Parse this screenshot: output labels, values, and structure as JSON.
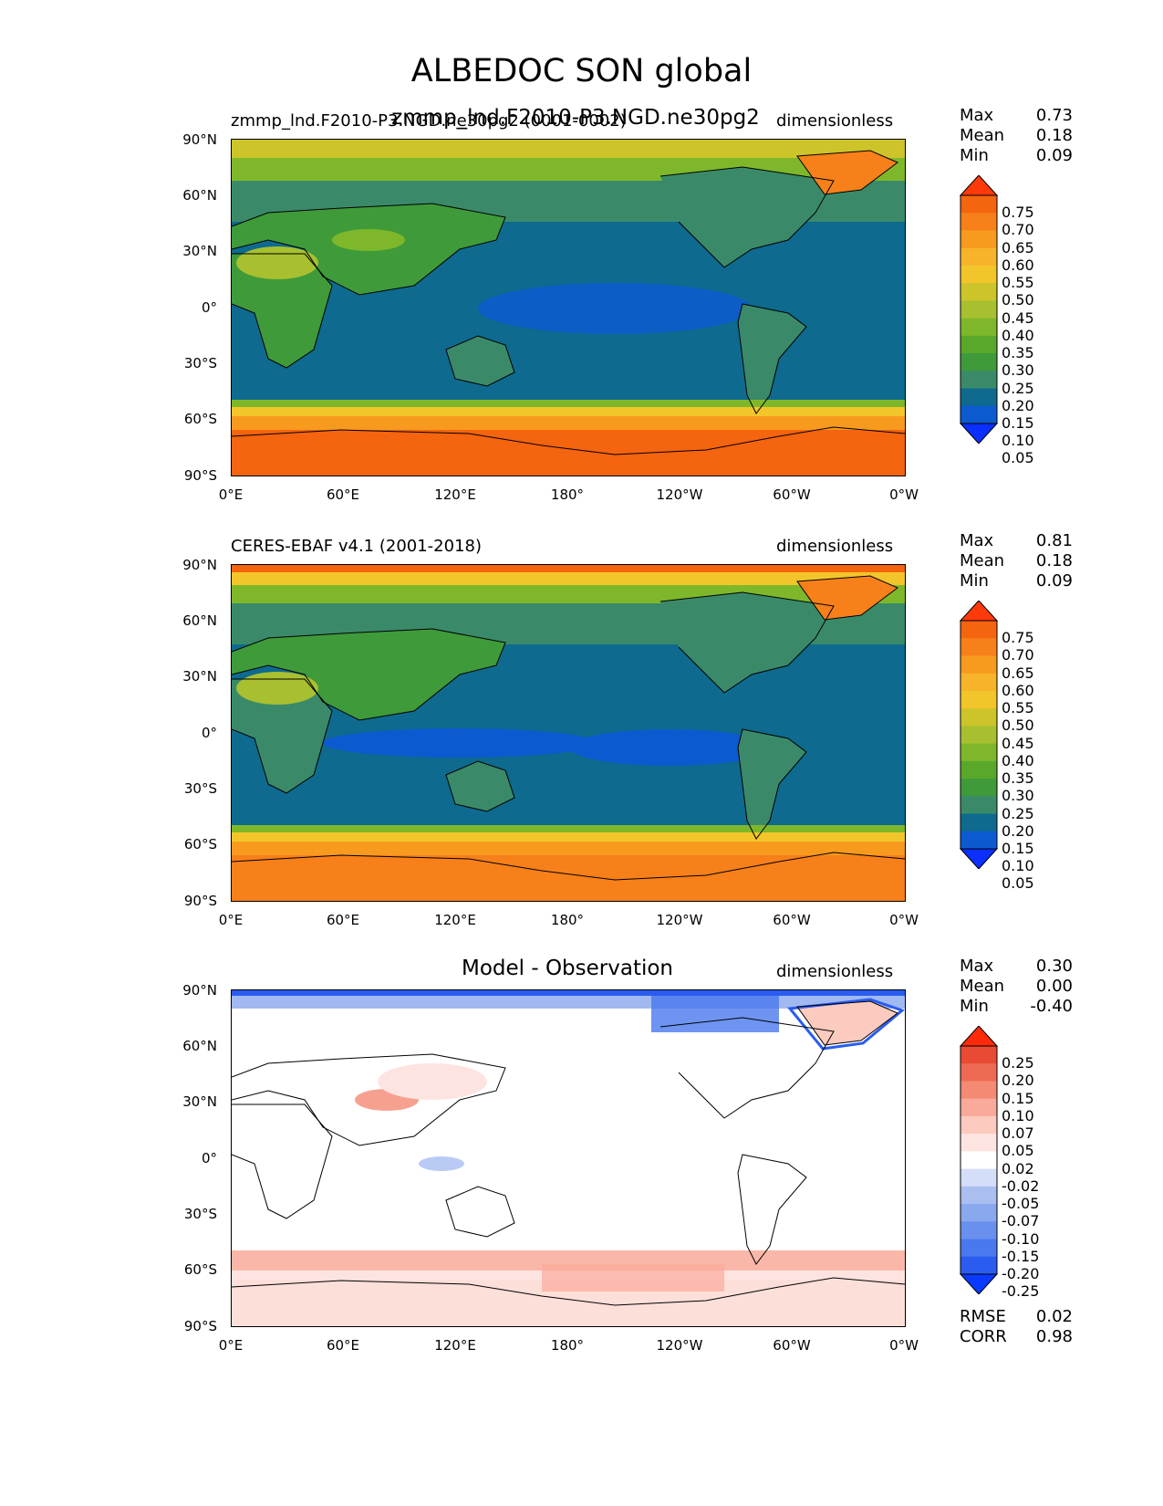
{
  "suptitle": "ALBEDOC SON global",
  "panels": [
    {
      "left_title": "zmmp_lnd.F2010-P3.NGD.ne30pg2 (0001-0002)",
      "center_title": "zmmp_lnd.F2010-P3.NGD.ne30pg2",
      "right_title": "dimensionless",
      "stats": [
        {
          "key": "Max",
          "value": "0.73"
        },
        {
          "key": "Mean",
          "value": "0.18"
        },
        {
          "key": "Min",
          "value": "0.09"
        }
      ],
      "colorbar_ticks": [
        "0.75",
        "0.70",
        "0.65",
        "0.60",
        "0.55",
        "0.50",
        "0.45",
        "0.40",
        "0.35",
        "0.30",
        "0.25",
        "0.20",
        "0.15",
        "0.10",
        "0.05"
      ]
    },
    {
      "left_title": "CERES-EBAF v4.1 (2001-2018)",
      "center_title": "",
      "right_title": "dimensionless",
      "stats": [
        {
          "key": "Max",
          "value": "0.81"
        },
        {
          "key": "Mean",
          "value": "0.18"
        },
        {
          "key": "Min",
          "value": "0.09"
        }
      ],
      "colorbar_ticks": [
        "0.75",
        "0.70",
        "0.65",
        "0.60",
        "0.55",
        "0.50",
        "0.45",
        "0.40",
        "0.35",
        "0.30",
        "0.25",
        "0.20",
        "0.15",
        "0.10",
        "0.05"
      ]
    },
    {
      "left_title": "",
      "center_title": "Model - Observation",
      "right_title": "dimensionless",
      "stats": [
        {
          "key": "Max",
          "value": "0.30"
        },
        {
          "key": "Mean",
          "value": "0.00"
        },
        {
          "key": "Min",
          "value": "-0.40"
        }
      ],
      "colorbar_ticks": [
        "0.25",
        "0.20",
        "0.15",
        "0.10",
        "0.07",
        "0.05",
        "0.02",
        "-0.02",
        "-0.05",
        "-0.07",
        "-0.10",
        "-0.15",
        "-0.20",
        "-0.25"
      ],
      "extra_stats": [
        {
          "key": "RMSE",
          "value": "0.02"
        },
        {
          "key": "CORR",
          "value": "0.98"
        }
      ]
    }
  ],
  "axes": {
    "lat_labels": [
      "90°N",
      "60°N",
      "30°N",
      "0°",
      "30°S",
      "60°S",
      "90°S"
    ],
    "lon_labels": [
      "0°E",
      "60°E",
      "120°E",
      "180°",
      "120°W",
      "60°W",
      "0°W"
    ]
  },
  "colors": {
    "abs_scale": [
      "#0a2fff",
      "#0c5ad0",
      "#0e6a8e",
      "#3a8a6a",
      "#3f9a3a",
      "#5aa82a",
      "#7eb82a",
      "#a8c030",
      "#cdc42a",
      "#f2c62a",
      "#f7b32a",
      "#f79a1e",
      "#f7801a",
      "#f5640f",
      "#ff3a0a"
    ],
    "diff_scale": [
      "#0a3aff",
      "#2a5cf0",
      "#4a78ee",
      "#6a90ee",
      "#8aa8ee",
      "#aabef0",
      "#d4def8",
      "#ffffff",
      "#fde4e0",
      "#fccabf",
      "#f9aa9a",
      "#f48a74",
      "#ee6a52",
      "#e84a34",
      "#ff2a0a"
    ],
    "ocean": "#0e6a8e",
    "land": "#3a8a6a",
    "land_green": "#3f9a3a"
  }
}
